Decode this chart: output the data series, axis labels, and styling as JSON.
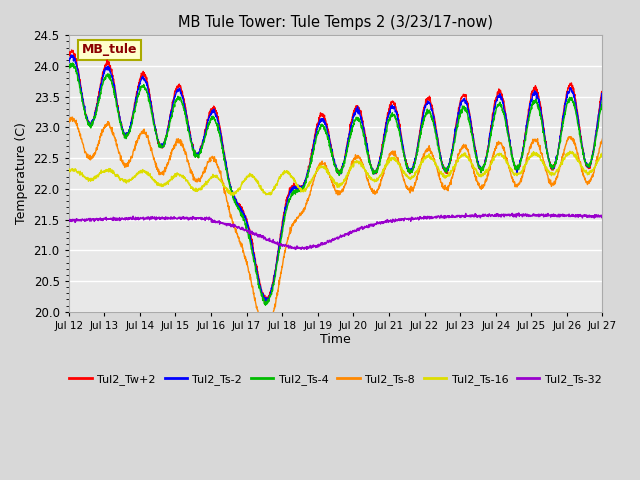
{
  "title": "MB Tule Tower: Tule Temps 2 (3/23/17-now)",
  "xlabel": "Time",
  "ylabel": "Temperature (C)",
  "ylim": [
    20.0,
    24.5
  ],
  "xlim": [
    0,
    15
  ],
  "fig_bg_color": "#d8d8d8",
  "plot_bg_color": "#e8e8e8",
  "series_colors": {
    "Tul2_Tw+2": "#ff0000",
    "Tul2_Ts-2": "#0000ff",
    "Tul2_Ts-4": "#00bb00",
    "Tul2_Ts-8": "#ff8800",
    "Tul2_Ts-16": "#dddd00",
    "Tul2_Ts-32": "#9900cc"
  },
  "legend_label": "MB_tule",
  "x_tick_labels": [
    "Jul 12",
    "Jul 13",
    "Jul 14",
    "Jul 15",
    "Jul 16",
    "Jul 17",
    "Jul 18",
    "Jul 19",
    "Jul 20",
    "Jul 21",
    "Jul 22",
    "Jul 23",
    "Jul 24",
    "Jul 25",
    "Jul 26",
    "Jul 27"
  ]
}
